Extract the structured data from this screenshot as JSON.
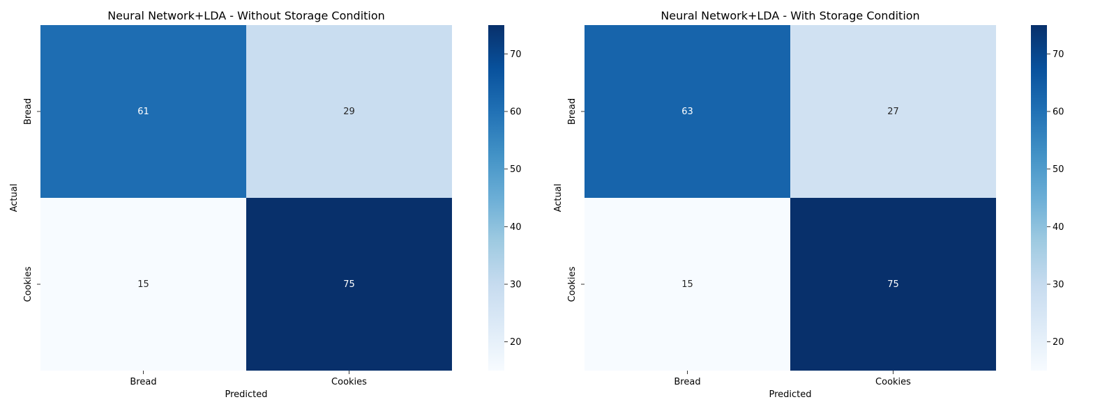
{
  "chart_data": [
    {
      "type": "heatmap",
      "title": "Neural Network+LDA - Without Storage Condition",
      "xlabel": "Predicted",
      "ylabel": "Actual",
      "x_categories": [
        "Bread",
        "Cookies"
      ],
      "y_categories": [
        "Bread",
        "Cookies"
      ],
      "values": [
        [
          61,
          29
        ],
        [
          15,
          75
        ]
      ],
      "colormap": "Blues",
      "colorbar": {
        "vmin": 15,
        "vmax": 75,
        "ticks": [
          20,
          30,
          40,
          50,
          60,
          70
        ]
      },
      "grid": false
    },
    {
      "type": "heatmap",
      "title": "Neural Network+LDA - With Storage Condition",
      "xlabel": "Predicted",
      "ylabel": "Actual",
      "x_categories": [
        "Bread",
        "Cookies"
      ],
      "y_categories": [
        "Bread",
        "Cookies"
      ],
      "values": [
        [
          63,
          27
        ],
        [
          15,
          75
        ]
      ],
      "colormap": "Blues",
      "colorbar": {
        "vmin": 15,
        "vmax": 75,
        "ticks": [
          20,
          30,
          40,
          50,
          60,
          70
        ]
      },
      "grid": false
    }
  ]
}
